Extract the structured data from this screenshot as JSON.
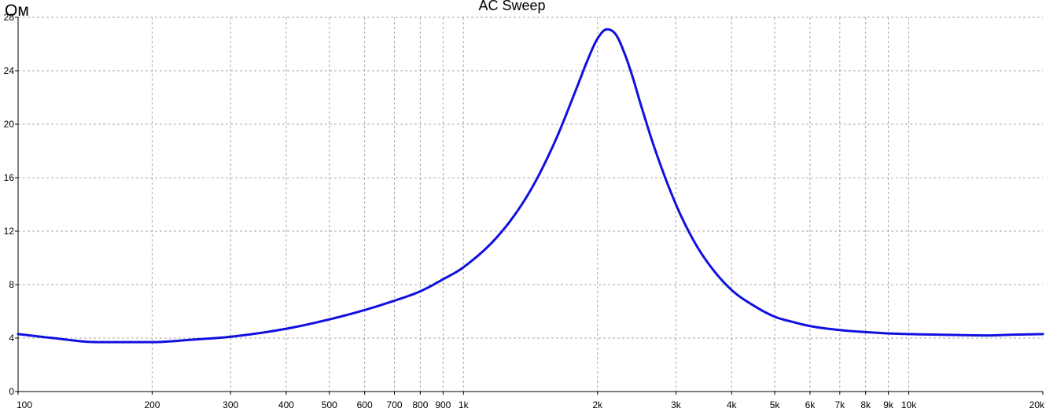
{
  "chart_data": {
    "type": "line",
    "title": "AC Sweep",
    "ylabel": "Ом",
    "xlabel": "",
    "x_scale": "log",
    "xlim": [
      100,
      20000
    ],
    "ylim": [
      0,
      28
    ],
    "grid": true,
    "y_ticks": [
      0,
      4,
      8,
      12,
      16,
      20,
      24,
      28
    ],
    "x_ticks": [
      {
        "value": 100,
        "label": "100"
      },
      {
        "value": 200,
        "label": "200"
      },
      {
        "value": 300,
        "label": "300"
      },
      {
        "value": 400,
        "label": "400"
      },
      {
        "value": 500,
        "label": "500"
      },
      {
        "value": 600,
        "label": "600"
      },
      {
        "value": 700,
        "label": "700"
      },
      {
        "value": 800,
        "label": "800"
      },
      {
        "value": 900,
        "label": "900"
      },
      {
        "value": 1000,
        "label": "1k"
      },
      {
        "value": 2000,
        "label": "2k"
      },
      {
        "value": 3000,
        "label": "3k"
      },
      {
        "value": 4000,
        "label": "4k"
      },
      {
        "value": 5000,
        "label": "5k"
      },
      {
        "value": 6000,
        "label": "6k"
      },
      {
        "value": 7000,
        "label": "7k"
      },
      {
        "value": 8000,
        "label": "8k"
      },
      {
        "value": 9000,
        "label": "9k"
      },
      {
        "value": 10000,
        "label": "10k"
      },
      {
        "value": 20000,
        "label": "20k"
      }
    ],
    "series": [
      {
        "color": "#1010e0",
        "x": [
          100,
          120,
          150,
          200,
          250,
          300,
          400,
          500,
          600,
          700,
          800,
          900,
          1000,
          1200,
          1400,
          1600,
          1800,
          1900,
          2000,
          2100,
          2200,
          2300,
          2400,
          2500,
          2700,
          3000,
          3300,
          3600,
          4000,
          4500,
          5000,
          5500,
          6000,
          7000,
          8000,
          9000,
          10000,
          12000,
          15000,
          17000,
          20000
        ],
        "values": [
          4.3,
          4.0,
          3.7,
          3.7,
          3.9,
          4.1,
          4.7,
          5.4,
          6.1,
          6.8,
          7.5,
          8.4,
          9.3,
          11.7,
          14.8,
          18.6,
          22.8,
          24.8,
          26.4,
          27.1,
          26.7,
          25.3,
          23.5,
          21.5,
          18.0,
          14.0,
          11.2,
          9.3,
          7.6,
          6.4,
          5.6,
          5.2,
          4.9,
          4.6,
          4.45,
          4.35,
          4.3,
          4.25,
          4.2,
          4.25,
          4.3
        ]
      }
    ]
  }
}
